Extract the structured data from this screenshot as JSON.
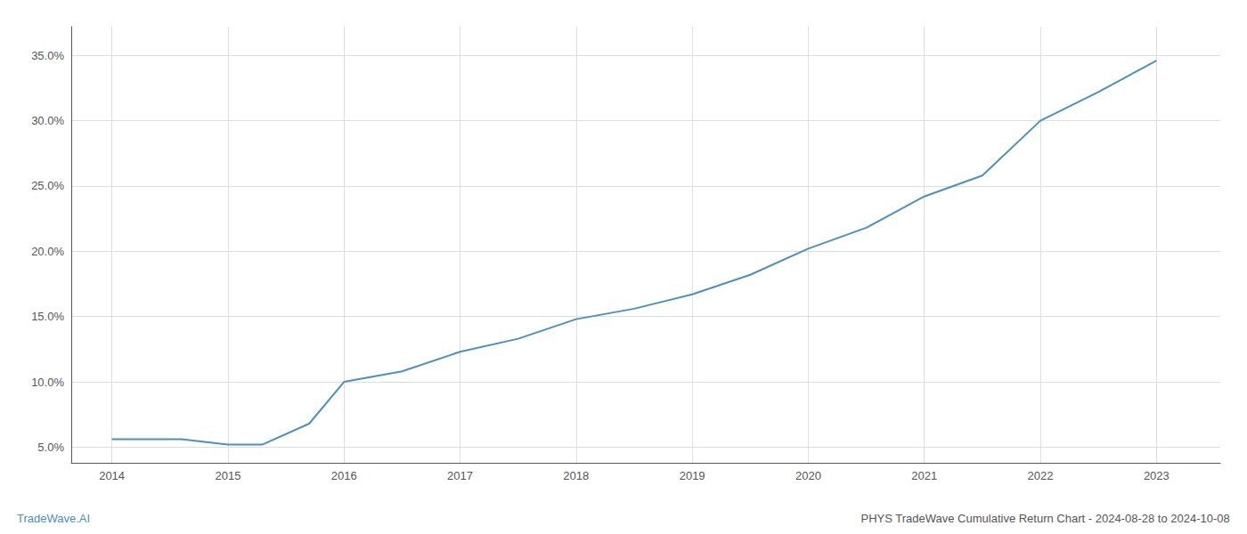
{
  "chart_data": {
    "type": "line",
    "x": [
      2014,
      2014.6,
      2015,
      2015.3,
      2015.7,
      2016,
      2016.5,
      2017,
      2017.5,
      2018,
      2018.5,
      2019,
      2019.5,
      2020,
      2020.5,
      2021,
      2021.5,
      2022,
      2022.5,
      2023
    ],
    "values": [
      0.056,
      0.056,
      0.052,
      0.052,
      0.068,
      0.1,
      0.108,
      0.123,
      0.133,
      0.148,
      0.156,
      0.167,
      0.182,
      0.202,
      0.218,
      0.242,
      0.258,
      0.3,
      0.322,
      0.346
    ],
    "color": "#4a90c4",
    "xlim": [
      2013.65,
      2023.55
    ],
    "ylim": [
      0.038,
      0.372
    ],
    "xticks": [
      2014,
      2015,
      2016,
      2017,
      2018,
      2019,
      2020,
      2021,
      2022,
      2023
    ],
    "yticks": [
      {
        "value": 0.05,
        "label": "5.0%"
      },
      {
        "value": 0.1,
        "label": "10.0%"
      },
      {
        "value": 0.15,
        "label": "15.0%"
      },
      {
        "value": 0.2,
        "label": "20.0%"
      },
      {
        "value": 0.25,
        "label": "25.0%"
      },
      {
        "value": 0.3,
        "label": "30.0%"
      },
      {
        "value": 0.35,
        "label": "35.0%"
      }
    ],
    "grid": true,
    "annotations": [
      {
        "text": "TradeWave.AI",
        "color": "#4a90c4"
      },
      {
        "text": "PHYS TradeWave Cumulative Return Chart - 2024-08-28 to 2024-10-08",
        "color": "#555555"
      }
    ]
  }
}
